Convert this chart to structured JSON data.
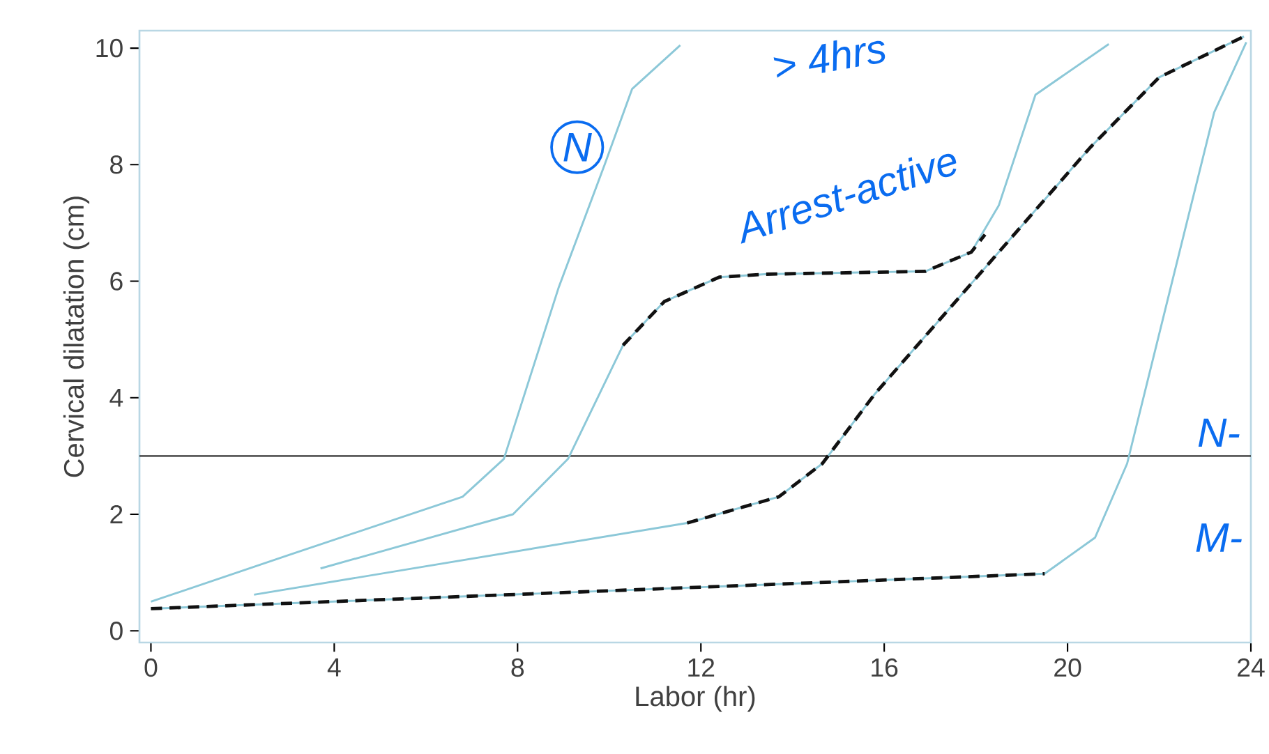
{
  "chart_data": {
    "type": "line",
    "xlabel": "Labor (hr)",
    "ylabel": "Cervical dilatation (cm)",
    "xlim": [
      -0.25,
      24
    ],
    "ylim": [
      -0.2,
      10.3
    ],
    "xticks": [
      0,
      4,
      8,
      12,
      16,
      20,
      24
    ],
    "yticks": [
      0,
      2,
      4,
      6,
      8,
      10
    ],
    "grid": false,
    "marker": "none",
    "line_style": "solid",
    "ref_lines": [
      {
        "axis": "y",
        "value": 3,
        "color": "#333333"
      }
    ],
    "series": [
      {
        "color": "#8cc8d8",
        "x": [
          0,
          3,
          6.8,
          7.7,
          8.9,
          9.9,
          10.5,
          11.55
        ],
        "values": [
          0.5,
          1.3,
          2.3,
          2.95,
          5.9,
          8.0,
          9.3,
          10.05
        ]
      },
      {
        "color": "#8cc8d8",
        "x": [
          3.7,
          7.9,
          9.1,
          10.3,
          11.2,
          12.4,
          13.4,
          16.9,
          17.9,
          18.5,
          19.3,
          20.9
        ],
        "values": [
          1.07,
          2.0,
          2.95,
          4.9,
          5.65,
          6.07,
          6.12,
          6.17,
          6.5,
          7.3,
          9.2,
          10.07
        ]
      },
      {
        "color": "#8cc8d8",
        "x": [
          2.25,
          11.7,
          13.7,
          14.65,
          15.8,
          18.0,
          20.5,
          22.0,
          23.85
        ],
        "values": [
          0.62,
          1.85,
          2.3,
          2.87,
          4.07,
          6.05,
          8.3,
          9.5,
          10.2
        ]
      },
      {
        "color": "#8cc8d8",
        "x": [
          0,
          19.5,
          20.6,
          21.3,
          22.3,
          23.2,
          23.9
        ],
        "values": [
          0.38,
          0.98,
          1.6,
          2.87,
          6.05,
          8.9,
          10.1
        ]
      },
      {
        "color": "#111111",
        "line_style": "dashed",
        "x": [
          10.3,
          11.2,
          12.4,
          13.4,
          16.9,
          17.9,
          18.2
        ],
        "values": [
          4.9,
          5.65,
          6.07,
          6.12,
          6.17,
          6.5,
          6.8
        ]
      },
      {
        "color": "#111111",
        "line_style": "dashed",
        "x": [
          11.7,
          13.7,
          14.65,
          15.8,
          18.0,
          20.5,
          22.0,
          23.85
        ],
        "values": [
          1.85,
          2.3,
          2.87,
          4.07,
          6.05,
          8.3,
          9.5,
          10.2
        ]
      },
      {
        "color": "#111111",
        "line_style": "dashed",
        "x": [
          0,
          19.5
        ],
        "values": [
          0.38,
          0.98
        ]
      }
    ],
    "annotations": [
      "N",
      "> 4hrs",
      "Arrest-active",
      "N-",
      "M-"
    ]
  }
}
